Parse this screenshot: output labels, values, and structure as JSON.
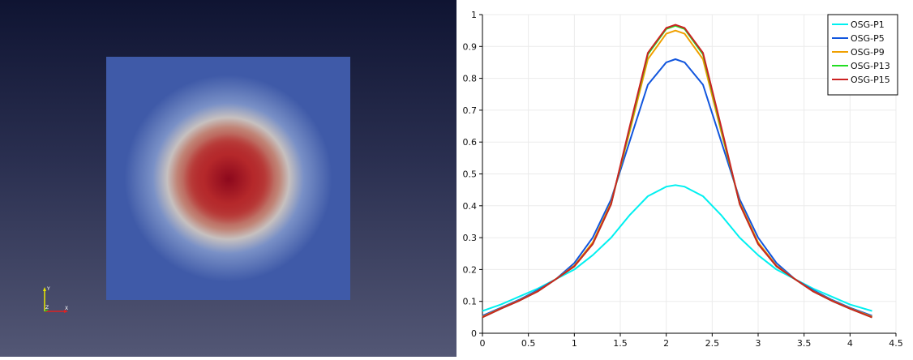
{
  "render_view": {
    "axes_triad": {
      "x_label": "X",
      "y_label": "Y",
      "z_label": "Z"
    }
  },
  "chart_data": {
    "type": "line",
    "xlim": [
      0,
      4.5
    ],
    "ylim": [
      0,
      1
    ],
    "x_ticks": [
      "0",
      "0.5",
      "1",
      "1.5",
      "2",
      "2.5",
      "3",
      "3.5",
      "4",
      "4.5"
    ],
    "y_ticks": [
      "0",
      "0.1",
      "0.2",
      "0.3",
      "0.4",
      "0.5",
      "0.6",
      "0.7",
      "0.8",
      "0.9",
      "1"
    ],
    "grid": true,
    "legend_position": "top-right",
    "x": [
      0,
      0.2,
      0.4,
      0.6,
      0.8,
      1.0,
      1.2,
      1.4,
      1.6,
      1.8,
      2.0,
      2.1,
      2.2,
      2.4,
      2.6,
      2.8,
      3.0,
      3.2,
      3.4,
      3.6,
      3.8,
      4.0,
      4.24
    ],
    "series": [
      {
        "name": "OSG-P1",
        "color": "#00f0f0",
        "values": [
          0.07,
          0.09,
          0.115,
          0.14,
          0.17,
          0.2,
          0.245,
          0.3,
          0.37,
          0.43,
          0.46,
          0.465,
          0.46,
          0.43,
          0.37,
          0.3,
          0.245,
          0.2,
          0.17,
          0.14,
          0.115,
          0.09,
          0.07
        ]
      },
      {
        "name": "OSG-P5",
        "color": "#1155dd",
        "values": [
          0.055,
          0.08,
          0.105,
          0.135,
          0.17,
          0.22,
          0.3,
          0.42,
          0.6,
          0.78,
          0.85,
          0.86,
          0.85,
          0.78,
          0.6,
          0.42,
          0.3,
          0.22,
          0.17,
          0.135,
          0.105,
          0.08,
          0.055
        ]
      },
      {
        "name": "OSG-P9",
        "color": "#f0a000",
        "values": [
          0.052,
          0.078,
          0.103,
          0.132,
          0.17,
          0.212,
          0.285,
          0.41,
          0.63,
          0.86,
          0.94,
          0.95,
          0.94,
          0.86,
          0.63,
          0.41,
          0.285,
          0.212,
          0.17,
          0.132,
          0.103,
          0.078,
          0.052
        ]
      },
      {
        "name": "OSG-P13",
        "color": "#22dd22",
        "values": [
          0.05,
          0.077,
          0.102,
          0.131,
          0.17,
          0.21,
          0.28,
          0.405,
          0.64,
          0.875,
          0.955,
          0.965,
          0.955,
          0.875,
          0.64,
          0.405,
          0.28,
          0.21,
          0.17,
          0.131,
          0.102,
          0.077,
          0.05
        ]
      },
      {
        "name": "OSG-P15",
        "color": "#cc2222",
        "values": [
          0.05,
          0.077,
          0.102,
          0.131,
          0.17,
          0.21,
          0.28,
          0.405,
          0.645,
          0.88,
          0.958,
          0.968,
          0.958,
          0.88,
          0.645,
          0.405,
          0.28,
          0.21,
          0.17,
          0.131,
          0.102,
          0.077,
          0.05
        ]
      }
    ]
  }
}
